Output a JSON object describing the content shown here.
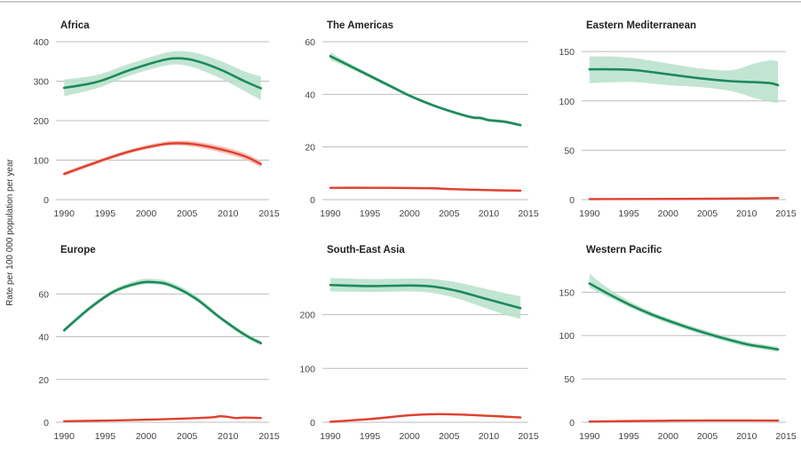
{
  "figure": {
    "ylabel": "Rate per 100 000 population per year",
    "colors": {
      "notified": "#1b8a5a",
      "notified_band": "#b7e0cb",
      "mortality": "#e0402f",
      "mortality_band": "#f5b8ae",
      "grid": "#bdbdbd"
    }
  },
  "chart_data": [
    {
      "type": "line",
      "title": "Africa",
      "xlim": [
        1989,
        2015
      ],
      "ylim": [
        0,
        400
      ],
      "xticks": [
        1990,
        1995,
        2000,
        2005,
        2010,
        2015
      ],
      "yticks": [
        0,
        100,
        200,
        300,
        400
      ],
      "series": [
        {
          "x": [
            1990,
            1994,
            1998,
            2002,
            2004,
            2006,
            2009,
            2012,
            2014
          ],
          "values": [
            283,
            298,
            328,
            353,
            358,
            352,
            330,
            300,
            282
          ],
          "lower": [
            262,
            282,
            314,
            338,
            342,
            333,
            308,
            275,
            252
          ],
          "upper": [
            304,
            316,
            344,
            370,
            376,
            372,
            352,
            325,
            312
          ]
        },
        {
          "x": [
            1990,
            1994,
            1998,
            2002,
            2004,
            2006,
            2009,
            2012,
            2014
          ],
          "values": [
            65,
            95,
            122,
            140,
            143,
            140,
            128,
            110,
            90
          ],
          "lower": [
            60,
            90,
            117,
            135,
            137,
            133,
            120,
            102,
            82
          ],
          "upper": [
            70,
            100,
            127,
            146,
            149,
            147,
            136,
            118,
            98
          ]
        }
      ]
    },
    {
      "type": "line",
      "title": "The Americas",
      "xlim": [
        1989,
        2015
      ],
      "ylim": [
        0,
        60
      ],
      "xticks": [
        1990,
        1995,
        2000,
        2005,
        2010,
        2015
      ],
      "yticks": [
        0,
        20,
        40,
        60
      ],
      "series": [
        {
          "x": [
            1990,
            1992,
            1995,
            1998,
            2000,
            2003,
            2006,
            2008,
            2009,
            2010,
            2012,
            2014
          ],
          "values": [
            54.5,
            51.5,
            47,
            42.5,
            39.5,
            35.8,
            32.8,
            31.2,
            31.0,
            30.2,
            29.6,
            28.3
          ],
          "lower": [
            53,
            50.5,
            46.2,
            41.8,
            38.9,
            35.2,
            32.2,
            30.6,
            30.4,
            29.6,
            29,
            27.7
          ],
          "upper": [
            56,
            52.5,
            47.8,
            43.2,
            40.1,
            36.4,
            33.4,
            31.8,
            31.6,
            30.8,
            30.2,
            28.9
          ]
        },
        {
          "x": [
            1990,
            1995,
            2000,
            2003,
            2005,
            2010,
            2014
          ],
          "values": [
            4.5,
            4.5,
            4.4,
            4.3,
            4.0,
            3.6,
            3.4
          ],
          "lower": [
            4.1,
            4.1,
            4.0,
            3.9,
            3.6,
            3.2,
            3.0
          ],
          "upper": [
            4.9,
            4.9,
            4.8,
            4.7,
            4.4,
            4.0,
            3.8
          ]
        }
      ]
    },
    {
      "type": "line",
      "title": "Eastern Mediterranean",
      "xlim": [
        1989,
        2015
      ],
      "ylim": [
        0,
        160
      ],
      "xticks": [
        1990,
        1995,
        2000,
        2005,
        2010,
        2015
      ],
      "yticks": [
        0,
        50,
        100,
        150
      ],
      "series": [
        {
          "x": [
            1990,
            1993,
            1996,
            2000,
            2004,
            2008,
            2011,
            2013,
            2014
          ],
          "values": [
            132,
            132,
            131,
            127,
            123,
            120,
            119,
            118,
            116
          ],
          "lower": [
            118,
            119,
            119,
            116,
            114,
            110,
            103,
            99,
            98
          ],
          "upper": [
            145,
            145,
            143,
            138,
            133,
            131,
            138,
            141,
            140
          ]
        },
        {
          "x": [
            1990,
            2000,
            2010,
            2014
          ],
          "values": [
            0.5,
            0.7,
            1.2,
            1.6
          ],
          "lower": [
            0.2,
            0.4,
            0.8,
            1.1
          ],
          "upper": [
            0.8,
            1.0,
            1.6,
            2.1
          ]
        }
      ]
    },
    {
      "type": "line",
      "title": "Europe",
      "xlim": [
        1989,
        2015
      ],
      "ylim": [
        0,
        73
      ],
      "xticks": [
        1990,
        1995,
        2000,
        2005,
        2010,
        2015
      ],
      "yticks": [
        0,
        20,
        40,
        60
      ],
      "series": [
        {
          "x": [
            1990,
            1993,
            1996,
            1999,
            2001,
            2003,
            2006,
            2009,
            2012,
            2014
          ],
          "values": [
            43,
            53,
            61,
            65,
            65.5,
            64,
            58,
            49,
            41,
            37
          ],
          "lower": [
            42,
            52,
            60,
            64,
            64.5,
            63,
            57,
            48,
            40,
            36
          ],
          "upper": [
            44,
            54,
            62,
            66.5,
            67,
            65.5,
            59.5,
            50,
            42,
            38
          ]
        },
        {
          "x": [
            1990,
            1995,
            2000,
            2005,
            2008,
            2009,
            2010,
            2011,
            2012,
            2014
          ],
          "values": [
            0.5,
            0.8,
            1.2,
            1.8,
            2.3,
            2.8,
            2.5,
            2.0,
            2.2,
            2.0
          ],
          "lower": [
            0.3,
            0.6,
            1.0,
            1.5,
            2.0,
            2.4,
            2.1,
            1.7,
            1.9,
            1.7
          ],
          "upper": [
            0.7,
            1.0,
            1.4,
            2.1,
            2.6,
            3.2,
            2.9,
            2.3,
            2.5,
            2.3
          ]
        }
      ]
    },
    {
      "type": "line",
      "title": "South-East Asia",
      "xlim": [
        1989,
        2015
      ],
      "ylim": [
        0,
        290
      ],
      "xticks": [
        1990,
        1995,
        2000,
        2005,
        2010,
        2015
      ],
      "yticks": [
        0,
        100,
        200
      ],
      "series": [
        {
          "x": [
            1990,
            1995,
            2000,
            2003,
            2006,
            2009,
            2012,
            2014
          ],
          "values": [
            255,
            253,
            254,
            252,
            244,
            232,
            220,
            212
          ],
          "lower": [
            243,
            242,
            243,
            240,
            230,
            215,
            200,
            192
          ],
          "upper": [
            268,
            266,
            267,
            266,
            260,
            250,
            240,
            234
          ]
        },
        {
          "x": [
            1990,
            1995,
            2000,
            2003,
            2006,
            2010,
            2014
          ],
          "values": [
            1,
            6,
            13,
            15,
            14.5,
            12,
            9
          ],
          "lower": [
            0,
            4,
            11,
            13,
            12.5,
            10,
            7
          ],
          "upper": [
            2,
            8,
            15,
            17,
            16.5,
            14,
            11
          ]
        }
      ]
    },
    {
      "type": "line",
      "title": "Western Pacific",
      "xlim": [
        1989,
        2015
      ],
      "ylim": [
        0,
        180
      ],
      "xticks": [
        1990,
        1995,
        2000,
        2005,
        2010,
        2015
      ],
      "yticks": [
        0,
        50,
        100,
        150
      ],
      "series": [
        {
          "x": [
            1990,
            1992,
            1995,
            1998,
            2001,
            2004,
            2007,
            2010,
            2012,
            2014
          ],
          "values": [
            160,
            150,
            136,
            124,
            114,
            105,
            97,
            90,
            87,
            84
          ],
          "lower": [
            155,
            146,
            133,
            121,
            111,
            102,
            94,
            87,
            84,
            81
          ],
          "upper": [
            171,
            157,
            140,
            127,
            117,
            108,
            100,
            93,
            90,
            87
          ]
        },
        {
          "x": [
            1990,
            1995,
            2000,
            2005,
            2010,
            2014
          ],
          "values": [
            0.8,
            1.4,
            1.9,
            2.1,
            2.1,
            2.0
          ],
          "lower": [
            0.5,
            1.1,
            1.6,
            1.8,
            1.8,
            1.7
          ],
          "upper": [
            1.1,
            1.7,
            2.2,
            2.4,
            2.4,
            2.3
          ]
        }
      ]
    }
  ]
}
